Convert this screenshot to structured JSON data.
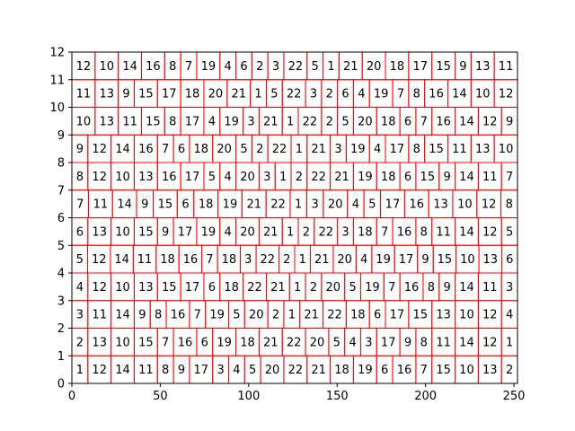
{
  "chart_data": {
    "type": "rectangle-packing",
    "title": "",
    "xlabel": "",
    "ylabel": "",
    "xlim": [
      0,
      252
    ],
    "ylim": [
      0,
      12
    ],
    "xticks": [
      0,
      50,
      100,
      150,
      200,
      250
    ],
    "yticks": [
      0,
      1,
      2,
      3,
      4,
      5,
      6,
      7,
      8,
      9,
      10,
      11,
      12
    ],
    "rect_color": "#ff0000",
    "grid": false,
    "rows": [
      {
        "y": 0,
        "labels": [
          "1",
          "12",
          "14",
          "11",
          "8",
          "9",
          "17",
          "3",
          "4",
          "5",
          "20",
          "22",
          "21",
          "18",
          "19",
          "6",
          "16",
          "7",
          "15",
          "10",
          "13",
          "2"
        ]
      },
      {
        "y": 1,
        "labels": [
          "2",
          "13",
          "10",
          "15",
          "7",
          "16",
          "6",
          "19",
          "18",
          "21",
          "22",
          "20",
          "5",
          "4",
          "3",
          "17",
          "9",
          "8",
          "11",
          "14",
          "12",
          "1"
        ]
      },
      {
        "y": 2,
        "labels": [
          "3",
          "11",
          "14",
          "9",
          "8",
          "16",
          "7",
          "19",
          "5",
          "20",
          "2",
          "1",
          "21",
          "22",
          "18",
          "6",
          "17",
          "15",
          "13",
          "10",
          "12",
          "4"
        ]
      },
      {
        "y": 3,
        "labels": [
          "4",
          "12",
          "10",
          "13",
          "15",
          "17",
          "6",
          "18",
          "22",
          "21",
          "1",
          "2",
          "20",
          "5",
          "19",
          "7",
          "16",
          "8",
          "9",
          "14",
          "11",
          "3"
        ]
      },
      {
        "y": 4,
        "labels": [
          "5",
          "12",
          "14",
          "11",
          "18",
          "16",
          "7",
          "18",
          "3",
          "22",
          "2",
          "1",
          "21",
          "20",
          "4",
          "19",
          "17",
          "9",
          "15",
          "10",
          "13",
          "6"
        ]
      },
      {
        "y": 5,
        "labels": [
          "6",
          "13",
          "10",
          "15",
          "9",
          "17",
          "19",
          "4",
          "20",
          "21",
          "1",
          "2",
          "22",
          "3",
          "18",
          "7",
          "16",
          "8",
          "11",
          "14",
          "12",
          "5"
        ]
      },
      {
        "y": 6,
        "labels": [
          "7",
          "11",
          "14",
          "9",
          "15",
          "6",
          "18",
          "19",
          "21",
          "22",
          "1",
          "3",
          "20",
          "4",
          "5",
          "17",
          "16",
          "13",
          "10",
          "12",
          "8"
        ]
      },
      {
        "y": 7,
        "labels": [
          "8",
          "12",
          "10",
          "13",
          "16",
          "17",
          "5",
          "4",
          "20",
          "3",
          "1",
          "2",
          "22",
          "21",
          "19",
          "18",
          "6",
          "15",
          "9",
          "14",
          "11",
          "7"
        ]
      },
      {
        "y": 8,
        "labels": [
          "9",
          "12",
          "14",
          "16",
          "7",
          "6",
          "18",
          "20",
          "5",
          "2",
          "22",
          "1",
          "21",
          "3",
          "19",
          "4",
          "17",
          "8",
          "15",
          "11",
          "13",
          "10"
        ]
      },
      {
        "y": 9,
        "labels": [
          "10",
          "13",
          "11",
          "15",
          "8",
          "17",
          "4",
          "19",
          "3",
          "21",
          "1",
          "22",
          "2",
          "5",
          "20",
          "18",
          "6",
          "7",
          "16",
          "14",
          "12",
          "9"
        ]
      },
      {
        "y": 10,
        "labels": [
          "11",
          "13",
          "9",
          "15",
          "17",
          "18",
          "20",
          "21",
          "1",
          "5",
          "22",
          "3",
          "2",
          "6",
          "4",
          "19",
          "7",
          "8",
          "16",
          "14",
          "10",
          "12"
        ]
      },
      {
        "y": 11,
        "labels": [
          "12",
          "10",
          "14",
          "16",
          "8",
          "7",
          "19",
          "4",
          "6",
          "2",
          "3",
          "22",
          "5",
          "1",
          "21",
          "20",
          "18",
          "17",
          "15",
          "9",
          "13",
          "11"
        ]
      }
    ]
  }
}
